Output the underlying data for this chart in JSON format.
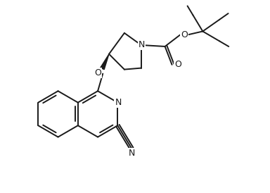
{
  "background_color": "#ffffff",
  "line_color": "#1a1a1a",
  "line_width": 1.4,
  "font_size": 8.5,
  "figsize": [
    3.84,
    2.74
  ],
  "dpi": 100,
  "xlim": [
    0,
    9.6
  ],
  "ylim": [
    0,
    6.85
  ]
}
